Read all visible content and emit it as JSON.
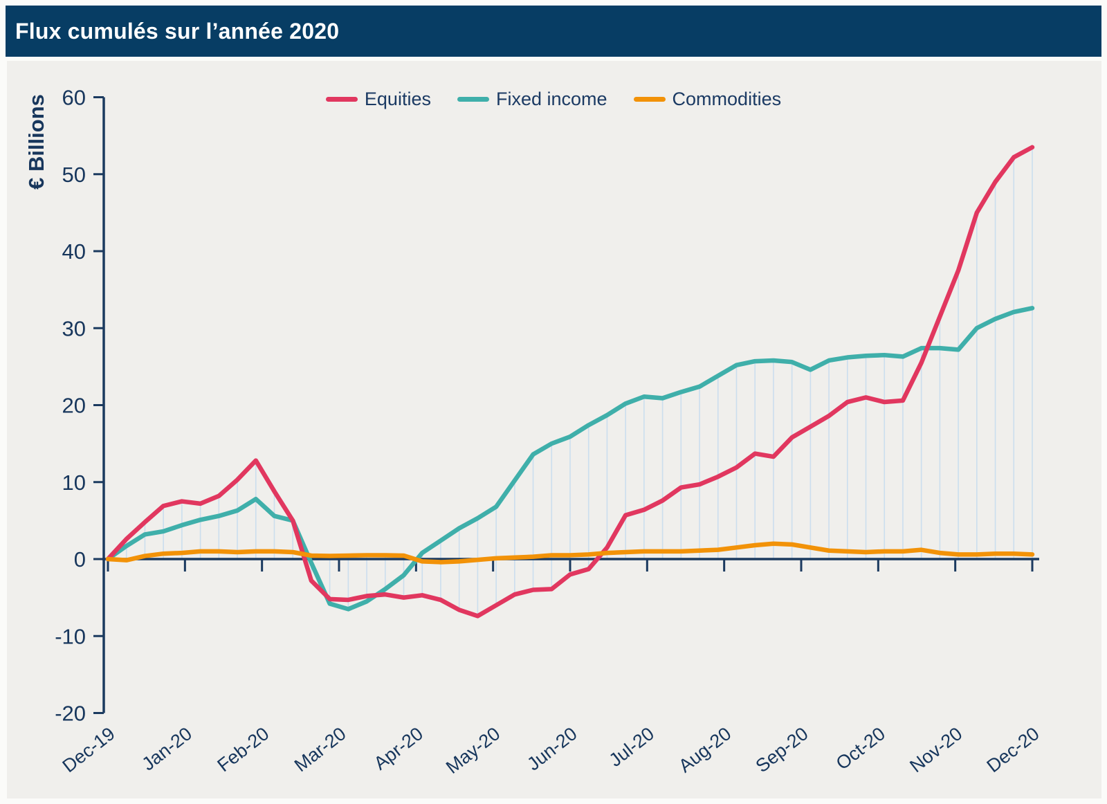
{
  "header": {
    "title": "Flux cumulés sur l’année 2020"
  },
  "chart_data": {
    "type": "line",
    "title": "Flux cumulés sur l’année 2020",
    "xlabel": "",
    "ylabel": "€ Billions",
    "ylim": [
      -20,
      60
    ],
    "yticks": [
      60,
      50,
      40,
      30,
      20,
      10,
      0,
      -10,
      -20
    ],
    "grid": false,
    "legend_position": "top-center",
    "x_unit": "weekly points from Dec-19 to Dec-20",
    "categories": [
      "Dec-19",
      "Jan-20",
      "Feb-20",
      "Mar-20",
      "Apr-20",
      "May-20",
      "Jun-20",
      "Jul-20",
      "Aug-20",
      "Sep-20",
      "Oct-20",
      "Nov-20",
      "Dec-20"
    ],
    "series": [
      {
        "name": "Equities",
        "color": "#e1375f",
        "values": [
          0,
          2.6,
          4.8,
          6.9,
          7.5,
          7.2,
          8.2,
          10.3,
          12.8,
          8.8,
          5.0,
          -2.8,
          -5.2,
          -5.3,
          -4.8,
          -4.6,
          -5.0,
          -4.7,
          -5.3,
          -6.6,
          -7.4,
          -6.0,
          -4.6,
          -4.0,
          -3.9,
          -2.0,
          -1.3,
          1.5,
          5.7,
          6.4,
          7.6,
          9.3,
          9.7,
          10.7,
          11.9,
          13.7,
          13.3,
          15.8,
          17.2,
          18.6,
          20.4,
          21.0,
          20.4,
          20.6,
          25.5,
          31.5,
          37.5,
          45.0,
          49.0,
          52.2,
          53.5
        ]
      },
      {
        "name": "Fixed income",
        "color": "#3fafaa",
        "values": [
          0,
          1.7,
          3.2,
          3.6,
          4.4,
          5.1,
          5.6,
          6.3,
          7.8,
          5.6,
          5.0,
          -0.5,
          -5.8,
          -6.5,
          -5.5,
          -3.9,
          -2.1,
          0.8,
          2.4,
          4.0,
          5.3,
          6.8,
          10.2,
          13.6,
          15.0,
          15.9,
          17.4,
          18.7,
          20.2,
          21.1,
          20.9,
          21.7,
          22.4,
          23.8,
          25.2,
          25.7,
          25.8,
          25.6,
          24.6,
          25.8,
          26.2,
          26.4,
          26.5,
          26.3,
          27.4,
          27.4,
          27.2,
          30.0,
          31.2,
          32.1,
          32.6
        ]
      },
      {
        "name": "Commodities",
        "color": "#f29208",
        "values": [
          0,
          -0.15,
          0.4,
          0.7,
          0.8,
          1.0,
          1.0,
          0.9,
          1.0,
          1.0,
          0.9,
          0.45,
          0.4,
          0.45,
          0.5,
          0.5,
          0.45,
          -0.3,
          -0.4,
          -0.3,
          -0.1,
          0.1,
          0.2,
          0.3,
          0.5,
          0.5,
          0.6,
          0.8,
          0.9,
          1.0,
          1.0,
          1.0,
          1.1,
          1.2,
          1.5,
          1.8,
          2.0,
          1.9,
          1.5,
          1.1,
          1.0,
          0.9,
          1.0,
          1.0,
          1.2,
          0.8,
          0.6,
          0.6,
          0.7,
          0.7,
          0.6
        ]
      }
    ],
    "style": {
      "axis_color": "#1b3a5f",
      "tick_label_color": "#17365c",
      "dropline_color": "#cbdeee",
      "panel_background": "#f0efec",
      "header_background": "#073d64",
      "header_text_color": "#ffffff"
    }
  }
}
